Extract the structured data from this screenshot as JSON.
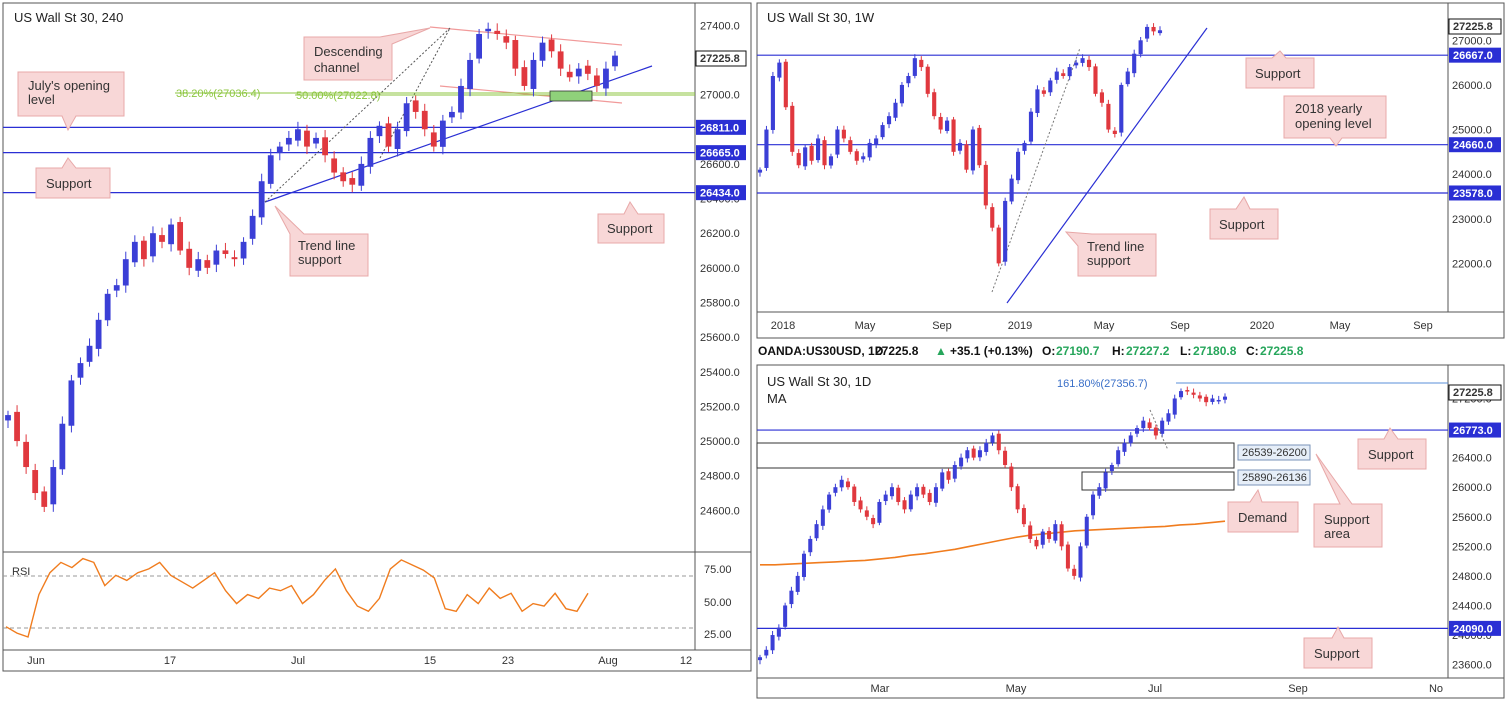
{
  "header": {
    "symbol": "OANDA:US30USD, 1D",
    "price": "27225.8",
    "change_arrow": "▲",
    "change": "+35.1 (+0.13%)",
    "o_label": "O:",
    "o": "27190.7",
    "h_label": "H:",
    "h": "27227.2",
    "l_label": "L:",
    "l": "27180.8",
    "c_label": "C:",
    "c": "27225.8"
  },
  "colors": {
    "bull": "#3b3fd6",
    "bear": "#e0383e",
    "support": "#2a2fd4",
    "fib": "#8cc63f",
    "ma": "#f07c1e",
    "channel": "#f19a9a",
    "callout_fill": "#f8d7d7",
    "callout_stroke": "#e8a8a8",
    "rsi": "#f07c1e"
  },
  "chart_data": [
    {
      "type": "candlestick",
      "title": "US Wall St 30, 240",
      "ylim": [
        24400,
        27500
      ],
      "y_ticks": [
        "27400.0",
        "27200.0",
        "27000.0",
        "26800.0",
        "26600.0",
        "26400.0",
        "26200.0",
        "26000.0",
        "25800.0",
        "25600.0",
        "25400.0",
        "25200.0",
        "25000.0",
        "24800.0",
        "24600.0"
      ],
      "x_ticks": [
        "Jun",
        "17",
        "Jul",
        "15",
        "23",
        "Aug",
        "12"
      ],
      "levels": [
        {
          "price": 26811.0,
          "label": "26811.0"
        },
        {
          "price": 26665.0,
          "label": "26665.0"
        },
        {
          "price": 26434.0,
          "label": "26434.0"
        }
      ],
      "last_price": "27225.8",
      "fib": [
        {
          "label": "38.20%(27036.4)",
          "price": 27036.4
        },
        {
          "label": "50.00%(27022.8)",
          "price": 27022.8
        }
      ],
      "callouts": [
        {
          "name": "descending-channel",
          "lines": [
            "Descending",
            "channel"
          ]
        },
        {
          "name": "julys-opening-level",
          "lines": [
            "July's opening",
            "level"
          ]
        },
        {
          "name": "support-left",
          "lines": [
            "Support"
          ]
        },
        {
          "name": "trend-line-support",
          "lines": [
            "Trend line",
            "support"
          ]
        },
        {
          "name": "support-right",
          "lines": [
            "Support"
          ]
        }
      ],
      "rsi": {
        "label": "RSI",
        "ylim": [
          15,
          85
        ],
        "y_ticks": [
          "75.00",
          "50.00",
          "25.00"
        ],
        "values": [
          30,
          25,
          22,
          55,
          72,
          80,
          76,
          83,
          80,
          62,
          70,
          66,
          72,
          75,
          80,
          70,
          65,
          60,
          66,
          72,
          58,
          48,
          55,
          52,
          60,
          58,
          62,
          48,
          55,
          66,
          75,
          58,
          46,
          42,
          52,
          75,
          82,
          78,
          74,
          68,
          44,
          42,
          55,
          48,
          60,
          52,
          56,
          42,
          48,
          46,
          56,
          44,
          42,
          56
        ]
      },
      "series": [
        {
          "name": "price",
          "close": [
            25150,
            25000,
            24850,
            24700,
            24620,
            24850,
            25100,
            25350,
            25450,
            25550,
            25700,
            25850,
            25900,
            26050,
            26150,
            26050,
            26200,
            26150,
            26250,
            26100,
            26000,
            26050,
            26000,
            26100,
            26080,
            26050,
            26150,
            26300,
            26500,
            26650,
            26700,
            26750,
            26800,
            26700,
            26750,
            26650,
            26550,
            26500,
            26480,
            26600,
            26750,
            26820,
            26700,
            26800,
            26950,
            26900,
            26800,
            26700,
            26850,
            26900,
            27050,
            27200,
            27350,
            27380,
            27350,
            27300,
            27150,
            27050,
            27200,
            27300,
            27250,
            27150,
            27100,
            27150,
            27120,
            27050,
            27150,
            27225
          ]
        }
      ]
    },
    {
      "type": "candlestick",
      "title": "US Wall St 30, 1W",
      "ylim": [
        21000,
        27500
      ],
      "y_ticks": [
        "27000.0",
        "26000.0",
        "25000.0",
        "24000.0",
        "23000.0",
        "22000.0"
      ],
      "x_ticks": [
        "2018",
        "May",
        "Sep",
        "2019",
        "May",
        "Sep",
        "2020",
        "May",
        "Sep"
      ],
      "levels": [
        {
          "price": 26667.0,
          "label": "26667.0"
        },
        {
          "price": 24660.0,
          "label": "24660.0"
        },
        {
          "price": 23578.0,
          "label": "23578.0"
        }
      ],
      "last_price": "27225.8",
      "callouts": [
        {
          "name": "support-top",
          "lines": [
            "Support"
          ]
        },
        {
          "name": "yearly-opening-level",
          "lines": [
            "2018 yearly",
            "opening level"
          ]
        },
        {
          "name": "support-bottom",
          "lines": [
            "Support"
          ]
        },
        {
          "name": "trend-line-support",
          "lines": [
            "Trend line",
            "support"
          ]
        }
      ],
      "series": [
        {
          "name": "price",
          "close": [
            24100,
            25000,
            26200,
            26500,
            25500,
            24500,
            24200,
            24600,
            24300,
            24800,
            24200,
            24400,
            25000,
            24800,
            24500,
            24300,
            24400,
            24700,
            24800,
            25100,
            25300,
            25600,
            26000,
            26200,
            26600,
            26400,
            25800,
            25300,
            25000,
            25200,
            24500,
            24700,
            24100,
            25000,
            24200,
            23300,
            22800,
            22000,
            23400,
            23900,
            24500,
            24700,
            25400,
            25900,
            25800,
            26100,
            26300,
            26200,
            26400,
            26500,
            26600,
            26400,
            25800,
            25600,
            25000,
            24900,
            26000,
            26300,
            26700,
            27000,
            27300,
            27200,
            27225
          ]
        }
      ]
    },
    {
      "type": "candlestick",
      "title": "US Wall St 30, 1D",
      "subtitle": "MA",
      "ylim": [
        23500,
        27450
      ],
      "y_ticks": [
        "27200.0",
        "26800.0",
        "26400.0",
        "26000.0",
        "25600.0",
        "25200.0",
        "24800.0",
        "24400.0",
        "24000.0",
        "23600.0"
      ],
      "x_ticks": [
        "Mar",
        "May",
        "Jul",
        "Sep",
        "No"
      ],
      "levels": [
        {
          "price": 26773.0,
          "label": "26773.0"
        },
        {
          "price": 24090.0,
          "label": "24090.0"
        }
      ],
      "last_price": "27225.8",
      "fib": [
        {
          "label": "161.80%(27356.7)",
          "price": 27356.7
        }
      ],
      "zones": [
        {
          "label": "26539-26200",
          "top": 26539,
          "bottom": 26200
        },
        {
          "label": "25890-26136",
          "top": 26136,
          "bottom": 25890
        }
      ],
      "callouts": [
        {
          "name": "support-top",
          "lines": [
            "Support"
          ]
        },
        {
          "name": "demand",
          "lines": [
            "Demand"
          ]
        },
        {
          "name": "support-area",
          "lines": [
            "Support",
            "area"
          ]
        },
        {
          "name": "support-bottom",
          "lines": [
            "Support"
          ]
        }
      ],
      "ma": [
        24950,
        24950,
        24960,
        24970,
        24980,
        24990,
        25000,
        25010,
        25030,
        25050,
        25080,
        25100,
        25130,
        25160,
        25200,
        25240,
        25280,
        25320,
        25350,
        25370,
        25390,
        25410,
        25420,
        25430,
        25440,
        25450,
        25460,
        25470,
        25490,
        25500,
        25520,
        25540
      ],
      "series": [
        {
          "name": "price",
          "close": [
            23700,
            23800,
            24000,
            24100,
            24400,
            24600,
            24800,
            25100,
            25300,
            25500,
            25700,
            25900,
            26000,
            26100,
            26000,
            25800,
            25700,
            25600,
            25500,
            25800,
            25900,
            26000,
            25800,
            25700,
            25900,
            26000,
            25900,
            25800,
            26000,
            26200,
            26100,
            26300,
            26400,
            26500,
            26400,
            26500,
            26600,
            26700,
            26500,
            26300,
            26000,
            25700,
            25500,
            25300,
            25200,
            25400,
            25300,
            25500,
            25200,
            24900,
            24800,
            25200,
            25600,
            25900,
            26000,
            26200,
            26300,
            26500,
            26600,
            26700,
            26800,
            26900,
            26800,
            26700,
            26900,
            27000,
            27200,
            27300,
            27300,
            27250,
            27200,
            27150,
            27200,
            27180,
            27225
          ]
        }
      ]
    }
  ]
}
